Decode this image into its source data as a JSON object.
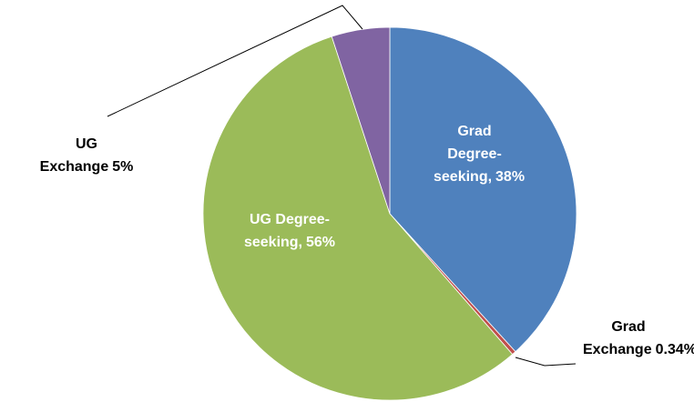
{
  "chart_data": {
    "type": "pie",
    "categories": [
      "Grad Degree-seeking,",
      "Grad Exchange",
      "UG Degree-seeking,",
      "UG Exchange"
    ],
    "values": [
      38,
      0.34,
      56,
      5
    ],
    "value_labels": [
      "38%",
      "0.34%",
      "56%",
      "5%"
    ],
    "colors": [
      "#4f81bd",
      "#c0504d",
      "#9bbb59",
      "#8064a2"
    ]
  }
}
